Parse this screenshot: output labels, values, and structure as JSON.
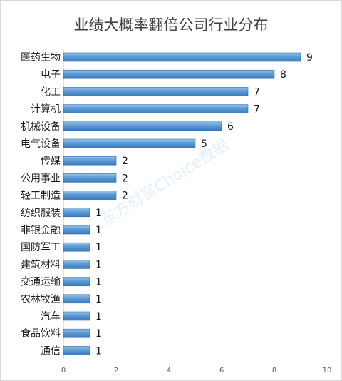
{
  "chart_data": {
    "type": "bar",
    "orientation": "horizontal",
    "title": "业绩大概率翻倍公司行业分布",
    "categories": [
      "医药生物",
      "电子",
      "化工",
      "计算机",
      "机械设备",
      "电气设备",
      "传媒",
      "公用事业",
      "轻工制造",
      "纺织服装",
      "非银金融",
      "国防军工",
      "建筑材料",
      "交通运输",
      "农林牧渔",
      "汽车",
      "食品饮料",
      "通信"
    ],
    "values": [
      9,
      8,
      7,
      7,
      6,
      5,
      2,
      2,
      2,
      1,
      1,
      1,
      1,
      1,
      1,
      1,
      1,
      1
    ],
    "xlim": [
      0,
      10
    ],
    "xticks": [
      0,
      2,
      4,
      6,
      8,
      10
    ],
    "grid": false,
    "bar_color": "#5b9bd5",
    "watermark": "东方财富Choice数据"
  }
}
